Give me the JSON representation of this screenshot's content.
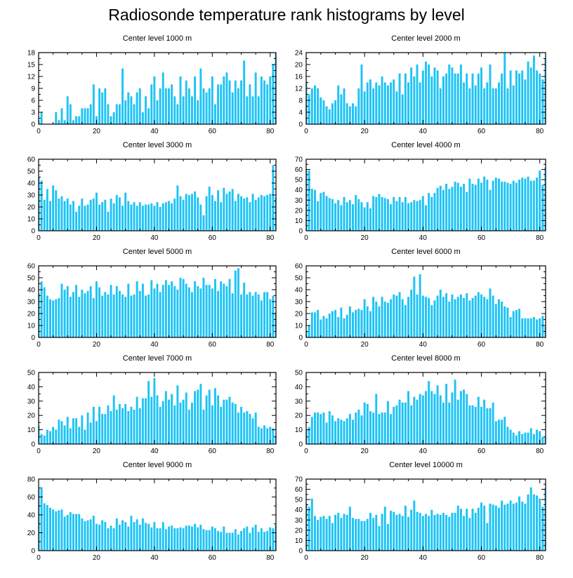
{
  "title": "Radiosonde temperature rank histograms by level",
  "bar_color": "#1ec3f5",
  "chart_data": [
    {
      "type": "bar",
      "title": "Center level 1000 m",
      "xlim": [
        0,
        82
      ],
      "xticks": [
        0,
        20,
        40,
        60,
        80
      ],
      "ylim": [
        0,
        18
      ],
      "yticks": [
        0,
        3,
        6,
        9,
        12,
        15,
        18
      ],
      "values": [
        1,
        3,
        0,
        0,
        0,
        0,
        3,
        1,
        4,
        1,
        7,
        5,
        1,
        2,
        2,
        4,
        4,
        4,
        5,
        10,
        2,
        9,
        8,
        9,
        5,
        2,
        3,
        5,
        5,
        14,
        6,
        8,
        7,
        5,
        8,
        9,
        3,
        7,
        4,
        10,
        12,
        6,
        9,
        13,
        9,
        9,
        10,
        7,
        5,
        12,
        7,
        11,
        9,
        7,
        12,
        6,
        14,
        9,
        8,
        9,
        12,
        5,
        10,
        10,
        12,
        13,
        11,
        8,
        11,
        9,
        11,
        16,
        7,
        10,
        7,
        13,
        7,
        12,
        11,
        10,
        12,
        15,
        18
      ]
    },
    {
      "type": "bar",
      "title": "Center level 2000 m",
      "xlim": [
        0,
        82
      ],
      "xticks": [
        0,
        20,
        40,
        60,
        80
      ],
      "ylim": [
        0,
        24
      ],
      "yticks": [
        0,
        4,
        8,
        12,
        16,
        20,
        24
      ],
      "values": [
        14,
        10,
        12,
        13,
        12,
        9,
        8,
        6,
        5,
        7,
        8,
        13,
        10,
        12,
        7,
        6,
        7,
        6,
        12,
        20,
        11,
        14,
        15,
        12,
        14,
        13,
        16,
        14,
        13,
        14,
        15,
        11,
        17,
        10,
        17,
        14,
        19,
        16,
        20,
        14,
        18,
        21,
        20,
        16,
        19,
        18,
        12,
        16,
        17,
        20,
        19,
        17,
        17,
        20,
        14,
        17,
        12,
        17,
        13,
        17,
        19,
        12,
        14,
        20,
        12,
        12,
        14,
        17,
        24,
        12,
        18,
        13,
        18,
        17,
        18,
        15,
        21,
        19,
        23,
        18,
        17,
        15,
        22
      ]
    },
    {
      "type": "bar",
      "title": "Center level 3000 m",
      "xlim": [
        0,
        82
      ],
      "xticks": [
        0,
        20,
        40,
        60,
        80
      ],
      "ylim": [
        0,
        60
      ],
      "yticks": [
        0,
        10,
        20,
        30,
        40,
        50,
        60
      ],
      "values": [
        45,
        42,
        26,
        35,
        25,
        38,
        34,
        27,
        29,
        25,
        27,
        22,
        25,
        16,
        21,
        27,
        21,
        22,
        26,
        27,
        32,
        22,
        24,
        26,
        16,
        27,
        23,
        30,
        28,
        21,
        32,
        25,
        22,
        24,
        21,
        24,
        21,
        22,
        22,
        23,
        21,
        24,
        20,
        23,
        24,
        25,
        23,
        27,
        38,
        29,
        26,
        31,
        30,
        31,
        33,
        28,
        22,
        13,
        29,
        37,
        30,
        25,
        34,
        24,
        36,
        31,
        33,
        35,
        25,
        31,
        29,
        27,
        28,
        24,
        31,
        26,
        28,
        30,
        29,
        30,
        31,
        55,
        28
      ]
    },
    {
      "type": "bar",
      "title": "Center level 4000 m",
      "xlim": [
        0,
        82
      ],
      "xticks": [
        0,
        20,
        40,
        60,
        80
      ],
      "ylim": [
        0,
        70
      ],
      "yticks": [
        0,
        10,
        20,
        30,
        40,
        50,
        60,
        70
      ],
      "values": [
        60,
        59,
        41,
        40,
        29,
        37,
        38,
        34,
        32,
        31,
        27,
        30,
        25,
        33,
        28,
        30,
        26,
        35,
        31,
        28,
        23,
        28,
        22,
        34,
        33,
        36,
        33,
        32,
        31,
        26,
        33,
        29,
        33,
        28,
        33,
        27,
        28,
        30,
        29,
        30,
        34,
        25,
        37,
        33,
        37,
        42,
        44,
        40,
        46,
        41,
        43,
        48,
        47,
        43,
        46,
        38,
        51,
        46,
        45,
        51,
        47,
        53,
        50,
        40,
        49,
        52,
        51,
        48,
        48,
        47,
        46,
        49,
        47,
        50,
        52,
        51,
        53,
        49,
        49,
        52,
        59,
        45,
        62
      ]
    },
    {
      "type": "bar",
      "title": "Center level 5000 m",
      "xlim": [
        0,
        82
      ],
      "xticks": [
        0,
        20,
        40,
        60,
        80
      ],
      "ylim": [
        0,
        60
      ],
      "yticks": [
        0,
        10,
        20,
        30,
        40,
        50,
        60
      ],
      "values": [
        37,
        47,
        42,
        35,
        32,
        31,
        32,
        33,
        45,
        40,
        43,
        34,
        38,
        44,
        34,
        40,
        37,
        39,
        43,
        33,
        47,
        42,
        35,
        38,
        36,
        44,
        36,
        43,
        39,
        36,
        34,
        45,
        35,
        36,
        47,
        39,
        45,
        35,
        36,
        48,
        41,
        45,
        38,
        44,
        48,
        44,
        47,
        43,
        40,
        50,
        49,
        45,
        42,
        38,
        47,
        43,
        41,
        50,
        44,
        44,
        41,
        49,
        39,
        47,
        45,
        43,
        49,
        37,
        56,
        58,
        36,
        46,
        36,
        38,
        35,
        38,
        36,
        31,
        38,
        38,
        32,
        35,
        21
      ]
    },
    {
      "type": "bar",
      "title": "Center level 6000 m",
      "xlim": [
        0,
        82
      ],
      "xticks": [
        0,
        20,
        40,
        60,
        80
      ],
      "ylim": [
        0,
        60
      ],
      "yticks": [
        0,
        10,
        20,
        30,
        40,
        50,
        60
      ],
      "values": [
        5,
        10,
        21,
        21,
        23,
        15,
        18,
        16,
        20,
        22,
        23,
        17,
        25,
        16,
        19,
        26,
        21,
        23,
        24,
        23,
        32,
        26,
        22,
        34,
        30,
        26,
        34,
        30,
        29,
        32,
        36,
        35,
        38,
        32,
        27,
        34,
        40,
        51,
        36,
        53,
        35,
        34,
        33,
        27,
        31,
        35,
        40,
        34,
        37,
        30,
        36,
        32,
        34,
        36,
        33,
        37,
        31,
        33,
        35,
        38,
        36,
        34,
        32,
        41,
        35,
        28,
        32,
        30,
        26,
        25,
        17,
        22,
        23,
        24,
        16,
        16,
        16,
        16,
        17,
        15,
        16,
        18,
        9
      ]
    },
    {
      "type": "bar",
      "title": "Center level 7000 m",
      "xlim": [
        0,
        82
      ],
      "xticks": [
        0,
        20,
        40,
        60,
        80
      ],
      "ylim": [
        0,
        50
      ],
      "yticks": [
        0,
        10,
        20,
        30,
        40,
        50
      ],
      "values": [
        13,
        7,
        6,
        10,
        9,
        12,
        10,
        17,
        16,
        13,
        19,
        11,
        18,
        18,
        12,
        20,
        10,
        22,
        15,
        26,
        16,
        26,
        21,
        21,
        27,
        23,
        34,
        24,
        28,
        25,
        28,
        23,
        26,
        24,
        33,
        25,
        32,
        32,
        44,
        33,
        46,
        34,
        26,
        30,
        37,
        31,
        35,
        27,
        41,
        29,
        31,
        36,
        24,
        29,
        37,
        38,
        42,
        24,
        34,
        38,
        27,
        39,
        34,
        26,
        31,
        31,
        33,
        29,
        28,
        22,
        26,
        22,
        23,
        21,
        18,
        22,
        12,
        11,
        13,
        11,
        12,
        11,
        6
      ]
    },
    {
      "type": "bar",
      "title": "Center level 8000 m",
      "xlim": [
        0,
        82
      ],
      "xticks": [
        0,
        20,
        40,
        60,
        80
      ],
      "ylim": [
        0,
        50
      ],
      "yticks": [
        0,
        10,
        20,
        30,
        40,
        50
      ],
      "values": [
        10,
        12,
        19,
        22,
        22,
        21,
        22,
        15,
        23,
        20,
        16,
        18,
        17,
        16,
        18,
        21,
        17,
        22,
        24,
        20,
        29,
        28,
        23,
        22,
        35,
        21,
        22,
        22,
        30,
        21,
        26,
        27,
        31,
        29,
        29,
        37,
        27,
        33,
        31,
        35,
        34,
        37,
        44,
        37,
        35,
        41,
        34,
        29,
        42,
        29,
        36,
        45,
        31,
        37,
        38,
        35,
        27,
        27,
        26,
        33,
        26,
        31,
        25,
        25,
        29,
        16,
        17,
        17,
        19,
        12,
        10,
        8,
        6,
        9,
        7,
        8,
        8,
        11,
        7,
        10,
        9,
        5,
        5
      ]
    },
    {
      "type": "bar",
      "title": "Center level 9000 m",
      "xlim": [
        0,
        82
      ],
      "xticks": [
        0,
        20,
        40,
        60,
        80
      ],
      "ylim": [
        0,
        80
      ],
      "yticks": [
        0,
        20,
        40,
        60,
        80
      ],
      "values": [
        69,
        71,
        53,
        51,
        48,
        46,
        44,
        45,
        46,
        38,
        40,
        43,
        41,
        41,
        41,
        36,
        33,
        34,
        35,
        39,
        30,
        29,
        34,
        32,
        25,
        28,
        25,
        36,
        29,
        34,
        32,
        27,
        39,
        32,
        35,
        29,
        36,
        31,
        30,
        26,
        32,
        25,
        25,
        32,
        24,
        27,
        28,
        25,
        25,
        26,
        25,
        28,
        28,
        27,
        30,
        26,
        29,
        24,
        23,
        23,
        27,
        25,
        22,
        21,
        27,
        20,
        20,
        20,
        24,
        18,
        22,
        25,
        27,
        20,
        26,
        29,
        21,
        25,
        21,
        22,
        26,
        25,
        29
      ]
    },
    {
      "type": "bar",
      "title": "Center level 10000 m",
      "xlim": [
        0,
        82
      ],
      "xticks": [
        0,
        20,
        40,
        60,
        80
      ],
      "ylim": [
        0,
        70
      ],
      "yticks": [
        0,
        10,
        20,
        30,
        40,
        50,
        60,
        70
      ],
      "values": [
        46,
        43,
        51,
        34,
        30,
        33,
        34,
        31,
        34,
        27,
        35,
        37,
        32,
        36,
        35,
        43,
        32,
        31,
        31,
        29,
        29,
        31,
        37,
        32,
        35,
        24,
        36,
        43,
        26,
        39,
        38,
        35,
        36,
        34,
        44,
        33,
        40,
        49,
        38,
        37,
        34,
        36,
        34,
        40,
        35,
        36,
        35,
        37,
        35,
        33,
        37,
        37,
        44,
        41,
        34,
        41,
        32,
        41,
        37,
        42,
        47,
        44,
        27,
        46,
        45,
        44,
        42,
        49,
        45,
        46,
        49,
        46,
        47,
        53,
        48,
        46,
        55,
        62,
        55,
        54,
        51,
        43,
        61
      ]
    }
  ]
}
